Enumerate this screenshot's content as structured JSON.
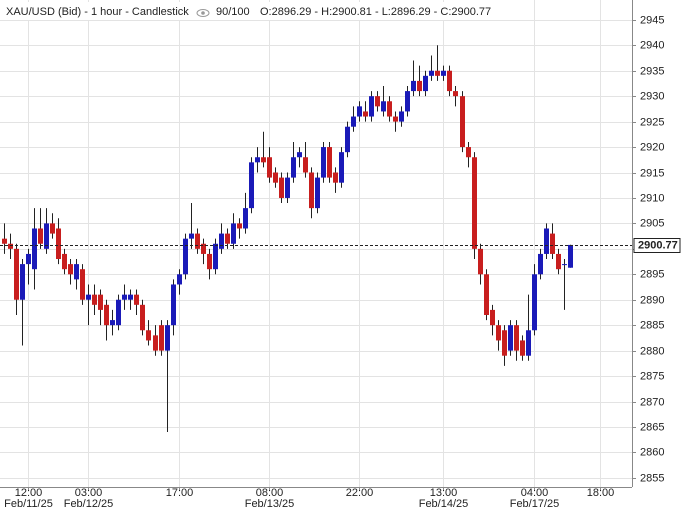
{
  "chart_data": {
    "type": "candlestick",
    "title": "XAU/USD (Bid) - 1 hour - Candlestick",
    "counter": "90/100",
    "ohlc_label": "O:2896.29 - H:2900.81 - L:2896.29 - C:2900.77",
    "up_color": "#1a1ab8",
    "down_color": "#c81e1e",
    "grid": true,
    "ylim": [
      2853.2,
      2948.9
    ],
    "yticks": [
      2855,
      2860,
      2865,
      2870,
      2875,
      2880,
      2885,
      2890,
      2895,
      2900,
      2905,
      2910,
      2915,
      2920,
      2925,
      2930,
      2935,
      2940,
      2945
    ],
    "last_price": 2900.77,
    "categories": [
      null,
      null,
      null,
      null,
      "12:00",
      null,
      null,
      null,
      null,
      null,
      null,
      null,
      null,
      null,
      "03:00",
      null,
      null,
      null,
      null,
      null,
      null,
      null,
      null,
      null,
      null,
      null,
      null,
      null,
      null,
      "17:00",
      null,
      null,
      null,
      null,
      null,
      null,
      null,
      null,
      null,
      null,
      null,
      null,
      null,
      null,
      "08:00",
      null,
      null,
      null,
      null,
      null,
      null,
      null,
      null,
      null,
      null,
      null,
      null,
      null,
      null,
      "22:00",
      null,
      null,
      null,
      null,
      null,
      null,
      null,
      null,
      null,
      null,
      null,
      null,
      null,
      "13:00",
      null,
      null,
      null,
      null,
      null,
      null,
      null,
      null,
      null,
      null,
      null,
      null,
      null,
      null,
      "04:00",
      null,
      null,
      null,
      null,
      null,
      null,
      null,
      null,
      null,
      null,
      "18:00"
    ],
    "dates": [
      null,
      null,
      null,
      null,
      "Feb/11/25",
      null,
      null,
      null,
      null,
      null,
      null,
      null,
      null,
      null,
      "Feb/12/25",
      null,
      null,
      null,
      null,
      null,
      null,
      null,
      null,
      null,
      null,
      null,
      null,
      null,
      null,
      null,
      null,
      null,
      null,
      null,
      null,
      null,
      null,
      null,
      null,
      null,
      null,
      null,
      null,
      null,
      "Feb/13/25",
      null,
      null,
      null,
      null,
      null,
      null,
      null,
      null,
      null,
      null,
      null,
      null,
      null,
      null,
      null,
      null,
      null,
      null,
      null,
      null,
      null,
      null,
      null,
      null,
      null,
      null,
      null,
      null,
      "Feb/14/25",
      null,
      null,
      null,
      null,
      null,
      null,
      null,
      null,
      null,
      null,
      null,
      null,
      null,
      null,
      "Feb/17/25",
      null,
      null,
      null,
      null,
      null,
      null,
      null,
      null,
      null,
      null,
      null
    ],
    "candles": [
      [
        2902,
        2905,
        2899,
        2901
      ],
      [
        2901,
        2903,
        2898,
        2900
      ],
      [
        2900,
        2901,
        2887,
        2890
      ],
      [
        2890,
        2898,
        2881,
        2897
      ],
      [
        2897,
        2900,
        2893,
        2899
      ],
      [
        2896,
        2908,
        2892,
        2904
      ],
      [
        2904,
        2908,
        2900,
        2901
      ],
      [
        2900,
        2908,
        2899,
        2905
      ],
      [
        2905,
        2907,
        2902,
        2903
      ],
      [
        2904,
        2906,
        2897,
        2898
      ],
      [
        2899,
        2900,
        2895,
        2896
      ],
      [
        2897,
        2898,
        2893,
        2895
      ],
      [
        2894,
        2898,
        2892,
        2897
      ],
      [
        2896,
        2897,
        2889,
        2890
      ],
      [
        2890,
        2893,
        2885,
        2891
      ],
      [
        2891,
        2893,
        2887,
        2889
      ],
      [
        2891,
        2892,
        2885,
        2888
      ],
      [
        2889,
        2890,
        2882,
        2885
      ],
      [
        2885,
        2888,
        2883,
        2886
      ],
      [
        2885,
        2891,
        2884,
        2890
      ],
      [
        2890,
        2893,
        2888,
        2891
      ],
      [
        2890,
        2892,
        2888,
        2891
      ],
      [
        2891,
        2892,
        2887,
        2889
      ],
      [
        2889,
        2890,
        2883,
        2884
      ],
      [
        2884,
        2886,
        2881,
        2882
      ],
      [
        2883,
        2885,
        2879,
        2880
      ],
      [
        2885,
        2886,
        2879,
        2880
      ],
      [
        2880,
        2886,
        2864,
        2885
      ],
      [
        2885,
        2894,
        2883,
        2893
      ],
      [
        2893,
        2896,
        2891,
        2895
      ],
      [
        2895,
        2903,
        2894,
        2902
      ],
      [
        2902,
        2909,
        2900,
        2903
      ],
      [
        2903,
        2904,
        2899,
        2900
      ],
      [
        2901,
        2902,
        2897,
        2899
      ],
      [
        2899,
        2900,
        2894,
        2896
      ],
      [
        2896,
        2902,
        2895,
        2901
      ],
      [
        2900,
        2905,
        2899,
        2903
      ],
      [
        2903,
        2904,
        2900,
        2901
      ],
      [
        2901,
        2907,
        2900,
        2905
      ],
      [
        2905,
        2906,
        2902,
        2904
      ],
      [
        2904,
        2911,
        2903,
        2908
      ],
      [
        2908,
        2918,
        2907,
        2917
      ],
      [
        2917,
        2920,
        2915,
        2918
      ],
      [
        2918,
        2923,
        2916,
        2917
      ],
      [
        2918,
        2920,
        2913,
        2914
      ],
      [
        2915,
        2916,
        2912,
        2913
      ],
      [
        2914,
        2915,
        2909,
        2910
      ],
      [
        2910,
        2915,
        2909,
        2914
      ],
      [
        2914,
        2921,
        2913,
        2918
      ],
      [
        2918,
        2920,
        2916,
        2919
      ],
      [
        2918,
        2921,
        2914,
        2915
      ],
      [
        2915,
        2916,
        2906,
        2908
      ],
      [
        2908,
        2915,
        2907,
        2914
      ],
      [
        2914,
        2921,
        2913,
        2920
      ],
      [
        2920,
        2921,
        2913,
        2914
      ],
      [
        2915,
        2916,
        2911,
        2913
      ],
      [
        2913,
        2920,
        2912,
        2919
      ],
      [
        2919,
        2925,
        2918,
        2924
      ],
      [
        2924,
        2928,
        2923,
        2926
      ],
      [
        2926,
        2929,
        2925,
        2928
      ],
      [
        2927,
        2929,
        2925,
        2926
      ],
      [
        2926,
        2931,
        2925,
        2930
      ],
      [
        2930,
        2931,
        2927,
        2928
      ],
      [
        2927,
        2932,
        2926,
        2929
      ],
      [
        2929,
        2930,
        2925,
        2926
      ],
      [
        2926,
        2927,
        2923,
        2925
      ],
      [
        2925,
        2928,
        2924,
        2927
      ],
      [
        2927,
        2932,
        2926,
        2931
      ],
      [
        2931,
        2937,
        2930,
        2933
      ],
      [
        2933,
        2936,
        2930,
        2931
      ],
      [
        2931,
        2935,
        2930,
        2934
      ],
      [
        2934,
        2938,
        2933,
        2935
      ],
      [
        2935,
        2940,
        2933,
        2934
      ],
      [
        2934,
        2936,
        2933,
        2935
      ],
      [
        2935,
        2936,
        2930,
        2931
      ],
      [
        2931,
        2932,
        2928,
        2930
      ],
      [
        2930,
        2931,
        2919,
        2920
      ],
      [
        2920,
        2921,
        2916,
        2918
      ],
      [
        2918,
        2919,
        2898,
        2900
      ],
      [
        2900,
        2901,
        2893,
        2895
      ],
      [
        2895,
        2896,
        2886,
        2887
      ],
      [
        2888,
        2889,
        2883,
        2885
      ],
      [
        2885,
        2886,
        2880,
        2882
      ],
      [
        2884,
        2885,
        2877,
        2879
      ],
      [
        2880,
        2886,
        2879,
        2885
      ],
      [
        2885,
        2886,
        2878,
        2880
      ],
      [
        2882,
        2883,
        2878,
        2879
      ],
      [
        2879,
        2891,
        2878,
        2884
      ],
      [
        2884,
        2897,
        2883,
        2895
      ],
      [
        2895,
        2900,
        2894,
        2899
      ],
      [
        2899,
        2905,
        2898,
        2904
      ],
      [
        2903,
        2905,
        2898,
        2899
      ],
      [
        2899,
        2900,
        2895,
        2896
      ],
      [
        2897,
        2898,
        2888,
        2897
      ],
      [
        2896.29,
        2900.81,
        2896.29,
        2900.77
      ],
      null,
      null,
      null,
      null,
      null,
      null
    ]
  }
}
